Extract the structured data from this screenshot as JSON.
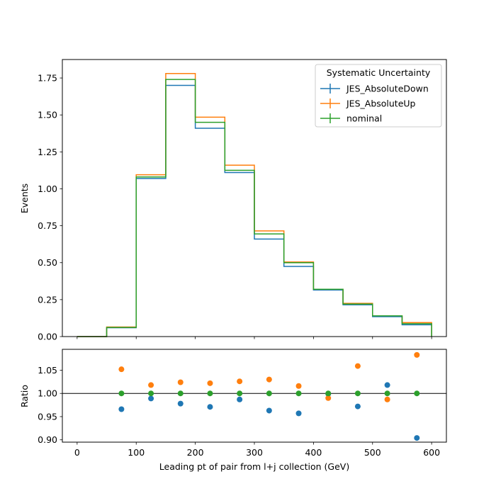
{
  "chart_data": [
    {
      "type": "line",
      "drawstyle": "steps",
      "xlabel": "",
      "ylabel": "Events",
      "xlim": [
        -25,
        625
      ],
      "ylim": [
        0,
        1.875
      ],
      "x_ticks": [
        0,
        100,
        200,
        300,
        400,
        500,
        600
      ],
      "y_ticks": [
        "0.00",
        "0.25",
        "0.50",
        "0.75",
        "1.00",
        "1.25",
        "1.50",
        "1.75"
      ],
      "bin_edges": [
        0,
        50,
        100,
        150,
        200,
        250,
        300,
        350,
        400,
        450,
        500,
        550,
        600
      ],
      "legend": {
        "title": "Systematic Uncertainty",
        "position": "top-right"
      },
      "series": [
        {
          "name": "JES_AbsoluteDown",
          "color": "#1f77b4",
          "values": [
            0.0,
            0.06,
            1.07,
            1.7,
            1.41,
            1.11,
            0.66,
            0.475,
            0.315,
            0.215,
            0.135,
            0.08
          ]
        },
        {
          "name": "JES_AbsoluteUp",
          "color": "#ff7f0e",
          "values": [
            0.0,
            0.065,
            1.095,
            1.78,
            1.485,
            1.16,
            0.715,
            0.505,
            0.32,
            0.225,
            0.14,
            0.095
          ]
        },
        {
          "name": "nominal",
          "color": "#2ca02c",
          "values": [
            0.0,
            0.062,
            1.08,
            1.74,
            1.45,
            1.125,
            0.695,
            0.5,
            0.32,
            0.22,
            0.14,
            0.087
          ]
        }
      ]
    },
    {
      "type": "scatter",
      "xlabel": "Leading pt of pair from l+j collection (GeV)",
      "ylabel": "Ratio",
      "xlim": [
        -25,
        625
      ],
      "ylim": [
        0.895,
        1.095
      ],
      "x_ticks": [
        0,
        100,
        200,
        300,
        400,
        500,
        600
      ],
      "y_ticks": [
        "0.90",
        "0.95",
        "1.00",
        "1.05"
      ],
      "reference_line": 1.0,
      "x": [
        75,
        125,
        175,
        225,
        275,
        325,
        375,
        425,
        475,
        525,
        575
      ],
      "series": [
        {
          "name": "JES_AbsoluteDown",
          "color": "#1f77b4",
          "values": [
            0.966,
            0.989,
            0.978,
            0.971,
            0.987,
            0.963,
            0.957,
            0.999,
            0.972,
            1.018,
            0.904
          ]
        },
        {
          "name": "JES_AbsoluteUp",
          "color": "#ff7f0e",
          "values": [
            1.052,
            1.018,
            1.024,
            1.022,
            1.026,
            1.03,
            1.016,
            0.99,
            1.059,
            0.987,
            1.083
          ]
        },
        {
          "name": "nominal",
          "color": "#2ca02c",
          "values": [
            1.0,
            1.0,
            1.0,
            1.0,
            1.0,
            1.0,
            1.0,
            1.0,
            1.0,
            1.0,
            1.0
          ]
        }
      ]
    }
  ]
}
